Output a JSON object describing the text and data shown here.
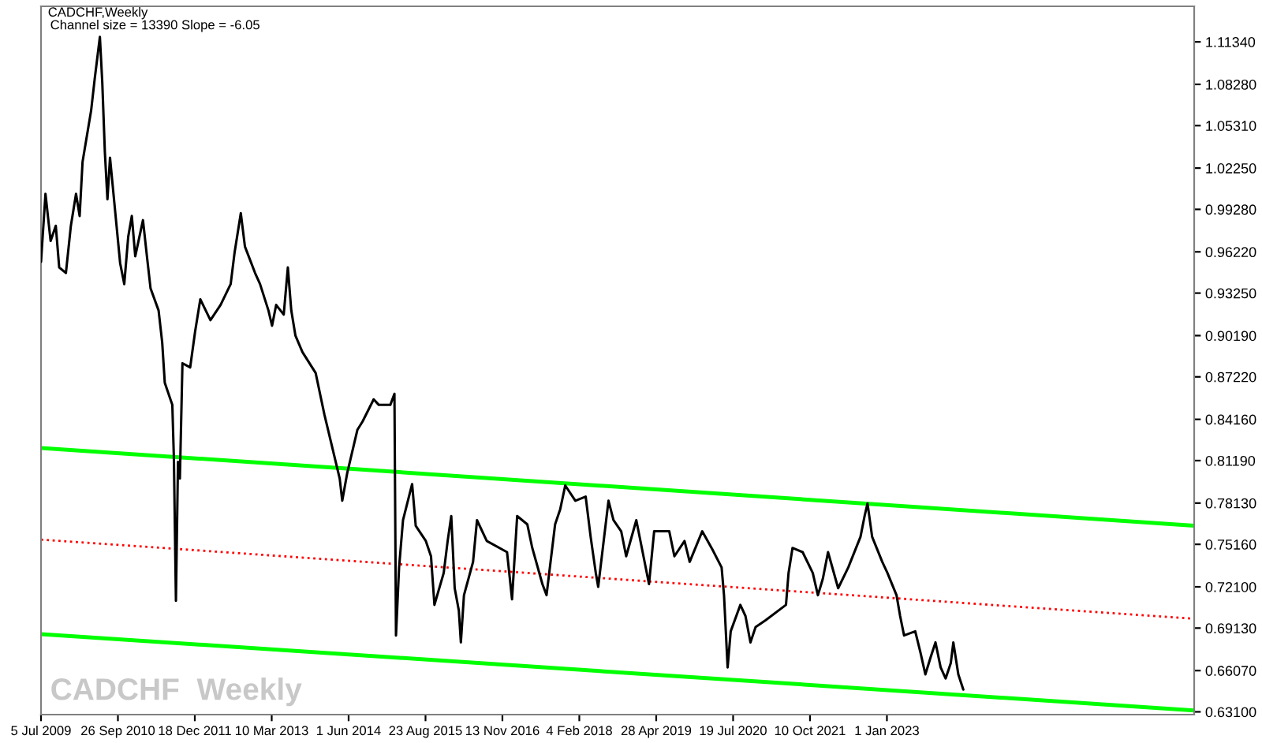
{
  "chart_data": {
    "type": "line",
    "title": "CADCHF,Weekly",
    "subtitle": "Channel size = 13390 Slope = -6.05",
    "annotations": [
      "CADCHF  Weekly"
    ],
    "xlim": [
      "2009-07-05",
      "2027-11-26"
    ],
    "xticks": [
      {
        "value": "2009-07-05",
        "label": "5 Jul 2009"
      },
      {
        "value": "2010-09-26",
        "label": "26 Sep 2010"
      },
      {
        "value": "2011-12-18",
        "label": "18 Dec 2011"
      },
      {
        "value": "2013-03-10",
        "label": "10 Mar 2013"
      },
      {
        "value": "2014-06-01",
        "label": "1 Jun 2014"
      },
      {
        "value": "2015-08-23",
        "label": "23 Aug 2015"
      },
      {
        "value": "2016-11-13",
        "label": "13 Nov 2016"
      },
      {
        "value": "2018-02-04",
        "label": "4 Feb 2018"
      },
      {
        "value": "2019-04-28",
        "label": "28 Apr 2019"
      },
      {
        "value": "2020-07-19",
        "label": "19 Jul 2020"
      },
      {
        "value": "2021-10-10",
        "label": "10 Oct 2021"
      },
      {
        "value": "2023-01-01",
        "label": "1 Jan 2023"
      }
    ],
    "ylim": [
      0.629,
      1.139
    ],
    "yticks": [
      {
        "value": 0.631,
        "label": "0.63100"
      },
      {
        "value": 0.6607,
        "label": "0.66070"
      },
      {
        "value": 0.6913,
        "label": "0.69130"
      },
      {
        "value": 0.721,
        "label": "0.72100"
      },
      {
        "value": 0.7516,
        "label": "0.75160"
      },
      {
        "value": 0.7813,
        "label": "0.78130"
      },
      {
        "value": 0.8119,
        "label": "0.81190"
      },
      {
        "value": 0.8416,
        "label": "0.84160"
      },
      {
        "value": 0.8722,
        "label": "0.87220"
      },
      {
        "value": 0.9019,
        "label": "0.90190"
      },
      {
        "value": 0.9325,
        "label": "0.93250"
      },
      {
        "value": 0.9622,
        "label": "0.96220"
      },
      {
        "value": 0.9928,
        "label": "0.99280"
      },
      {
        "value": 1.0225,
        "label": "1.02250"
      },
      {
        "value": 1.0531,
        "label": "1.05310"
      },
      {
        "value": 1.0828,
        "label": "1.08280"
      },
      {
        "value": 1.1134,
        "label": "1.11340"
      }
    ],
    "series": [
      {
        "color": "#000000",
        "x": [
          "2009-07-05",
          "2009-07-31",
          "2009-08-30",
          "2009-09-29",
          "2009-10-19",
          "2009-11-27",
          "2009-12-26",
          "2010-01-25",
          "2010-02-15",
          "2010-03-04",
          "2010-04-23",
          "2010-05-14",
          "2010-06-13",
          "2010-06-27",
          "2010-07-12",
          "2010-07-27",
          "2010-08-11",
          "2010-09-18",
          "2010-10-09",
          "2010-11-02",
          "2010-11-25",
          "2010-12-16",
          "2011-01-05",
          "2011-02-19",
          "2011-03-14",
          "2011-04-04",
          "2011-05-21",
          "2011-06-11",
          "2011-06-26",
          "2011-08-09",
          "2011-08-18",
          "2011-08-30",
          "2011-09-11",
          "2011-09-22",
          "2011-10-07",
          "2011-11-21",
          "2011-12-20",
          "2012-01-19",
          "2012-03-18",
          "2012-05-16",
          "2012-07-14",
          "2012-08-06",
          "2012-09-11",
          "2012-10-05",
          "2012-12-03",
          "2013-01-01",
          "2013-02-19",
          "2013-03-12",
          "2013-04-05",
          "2013-05-19",
          "2013-06-12",
          "2013-07-02",
          "2013-07-26",
          "2013-09-05",
          "2013-11-21",
          "2014-01-11",
          "2014-04-10",
          "2014-04-25",
          "2014-05-24",
          "2014-07-22",
          "2014-08-21",
          "2014-10-25",
          "2014-11-24",
          "2015-01-30",
          "2015-02-23",
          "2015-03-04",
          "2015-03-22",
          "2015-04-14",
          "2015-06-06",
          "2015-06-27",
          "2015-08-25",
          "2015-09-24",
          "2015-10-14",
          "2015-12-07",
          "2015-12-30",
          "2016-01-20",
          "2016-02-09",
          "2016-03-04",
          "2016-03-16",
          "2016-04-03",
          "2016-05-26",
          "2016-06-18",
          "2016-08-14",
          "2016-12-10",
          "2017-01-08",
          "2017-02-07",
          "2017-04-07",
          "2017-05-06",
          "2017-07-04",
          "2017-07-28",
          "2017-09-16",
          "2017-10-16",
          "2017-11-14",
          "2018-01-12",
          "2018-03-13",
          "2018-04-11",
          "2018-05-11",
          "2018-05-25",
          "2018-07-24",
          "2018-08-22",
          "2018-10-06",
          "2018-11-04",
          "2019-01-02",
          "2019-03-17",
          "2019-04-16",
          "2019-07-13",
          "2019-08-12",
          "2019-10-10",
          "2019-11-09",
          "2020-01-21",
          "2020-03-20",
          "2020-05-13",
          "2020-05-27",
          "2020-06-17",
          "2020-07-05",
          "2020-08-30",
          "2020-09-29",
          "2020-10-28",
          "2020-11-27",
          "2021-01-25",
          "2021-05-23",
          "2021-06-07",
          "2021-06-30",
          "2021-08-28",
          "2021-10-26",
          "2021-11-25",
          "2021-12-24",
          "2022-01-23",
          "2022-03-23",
          "2022-05-21",
          "2022-07-31",
          "2022-08-24",
          "2022-09-10",
          "2022-10-07",
          "2022-12-05",
          "2023-01-04",
          "2023-02-26",
          "2023-03-19",
          "2023-04-11",
          "2023-06-15",
          "2023-07-15",
          "2023-08-13",
          "2023-09-12",
          "2023-10-11",
          "2023-11-10",
          "2023-12-09",
          "2024-01-08",
          "2024-01-23",
          "2024-02-21",
          "2024-03-21"
        ],
        "values": [
          0.955,
          1.004,
          0.97,
          0.981,
          0.951,
          0.947,
          0.981,
          1.004,
          0.988,
          1.027,
          1.064,
          1.087,
          1.117,
          1.084,
          1.034,
          1.0,
          1.03,
          0.981,
          0.954,
          0.939,
          0.973,
          0.988,
          0.959,
          0.985,
          0.959,
          0.936,
          0.92,
          0.897,
          0.868,
          0.852,
          0.814,
          0.711,
          0.811,
          0.799,
          0.882,
          0.879,
          0.905,
          0.928,
          0.913,
          0.924,
          0.939,
          0.962,
          0.99,
          0.966,
          0.947,
          0.939,
          0.92,
          0.909,
          0.924,
          0.917,
          0.951,
          0.92,
          0.902,
          0.89,
          0.875,
          0.845,
          0.799,
          0.783,
          0.803,
          0.834,
          0.84,
          0.856,
          0.852,
          0.852,
          0.86,
          0.686,
          0.735,
          0.769,
          0.795,
          0.765,
          0.754,
          0.743,
          0.708,
          0.731,
          0.754,
          0.772,
          0.72,
          0.704,
          0.681,
          0.715,
          0.739,
          0.769,
          0.754,
          0.746,
          0.712,
          0.772,
          0.766,
          0.749,
          0.723,
          0.715,
          0.766,
          0.777,
          0.794,
          0.783,
          0.786,
          0.757,
          0.731,
          0.721,
          0.783,
          0.769,
          0.761,
          0.743,
          0.769,
          0.723,
          0.761,
          0.761,
          0.743,
          0.754,
          0.739,
          0.761,
          0.748,
          0.735,
          0.715,
          0.663,
          0.689,
          0.708,
          0.7,
          0.681,
          0.692,
          0.697,
          0.708,
          0.731,
          0.749,
          0.746,
          0.731,
          0.715,
          0.727,
          0.746,
          0.72,
          0.735,
          0.757,
          0.772,
          0.781,
          0.757,
          0.739,
          0.731,
          0.715,
          0.7,
          0.686,
          0.689,
          0.674,
          0.658,
          0.67,
          0.681,
          0.663,
          0.655,
          0.666,
          0.681,
          0.658,
          0.647
        ]
      },
      {
        "color": "#00ff00",
        "x": [
          "2009-07-05",
          "2027-11-26"
        ],
        "values": [
          0.821,
          0.765
        ]
      },
      {
        "color": "#ff0000",
        "line_style": "dotted",
        "x": [
          "2009-07-05",
          "2027-11-26"
        ],
        "values": [
          0.755,
          0.698
        ]
      },
      {
        "color": "#00ff00",
        "x": [
          "2009-07-05",
          "2027-11-26"
        ],
        "values": [
          0.687,
          0.632
        ]
      }
    ]
  }
}
